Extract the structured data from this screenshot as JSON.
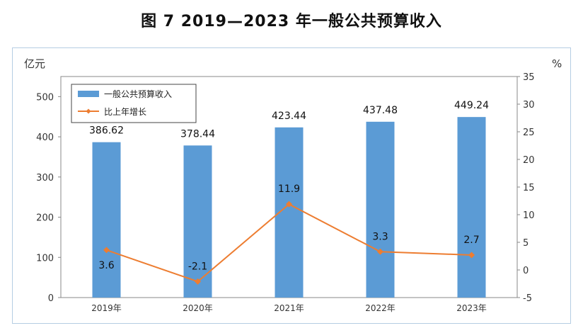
{
  "figure_title": "图 7    2019—2023 年一般公共预算收入",
  "chart_data": {
    "type": "bar+line",
    "categories": [
      "2019年",
      "2020年",
      "2021年",
      "2022年",
      "2023年"
    ],
    "series": [
      {
        "name": "一般公共预算收入",
        "type": "bar",
        "axis": "left",
        "values": [
          386.62,
          378.44,
          423.44,
          437.48,
          449.24
        ],
        "labels": [
          "386.62",
          "378.44",
          "423.44",
          "437.48",
          "449.24"
        ],
        "color": "#5b9bd5"
      },
      {
        "name": "比上年增长",
        "type": "line",
        "axis": "right",
        "values": [
          3.6,
          -2.1,
          11.9,
          3.3,
          2.7
        ],
        "labels": [
          "3.6",
          "-2.1",
          "11.9",
          "3.3",
          "2.7"
        ],
        "color": "#ed7d31"
      }
    ],
    "left_axis": {
      "unit": "亿元",
      "ylim": [
        0,
        550
      ],
      "ticks": [
        "0",
        "100",
        "200",
        "300",
        "400",
        "500"
      ]
    },
    "right_axis": {
      "unit": "%",
      "ylim": [
        -5,
        35
      ],
      "ticks": [
        "-5",
        "0",
        "5",
        "10",
        "15",
        "20",
        "25",
        "30",
        "35"
      ]
    },
    "legend": {
      "position": "top-left"
    }
  }
}
